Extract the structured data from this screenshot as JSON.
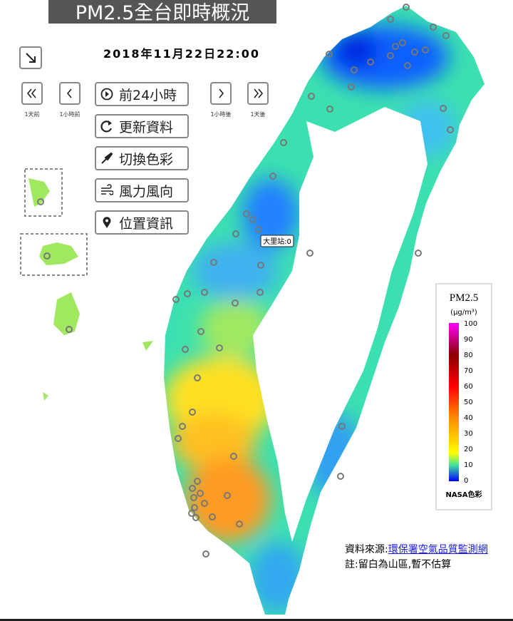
{
  "header": {
    "title": "PM2.5全台即時概況",
    "datetime": "2018年11月22日22:00"
  },
  "nav": {
    "labels": [
      "1天前",
      "1小時前",
      "1小時後",
      "1天後"
    ]
  },
  "controls": [
    "前24小時",
    "更新資料",
    "切換色彩",
    "風力風向",
    "位置資訊"
  ],
  "map": {
    "tooltip": "大里站:0"
  },
  "legend": {
    "title": "PM2.5",
    "unit": "(μg/m³)",
    "ticks": [
      100,
      90,
      80,
      70,
      60,
      50,
      40,
      30,
      20,
      10,
      0
    ],
    "note": "NASA色彩"
  },
  "footer": {
    "source_label": "資料來源:",
    "source_link": "環保署空氣品質監測網",
    "note": "註:留白為山區,暫不估算"
  }
}
